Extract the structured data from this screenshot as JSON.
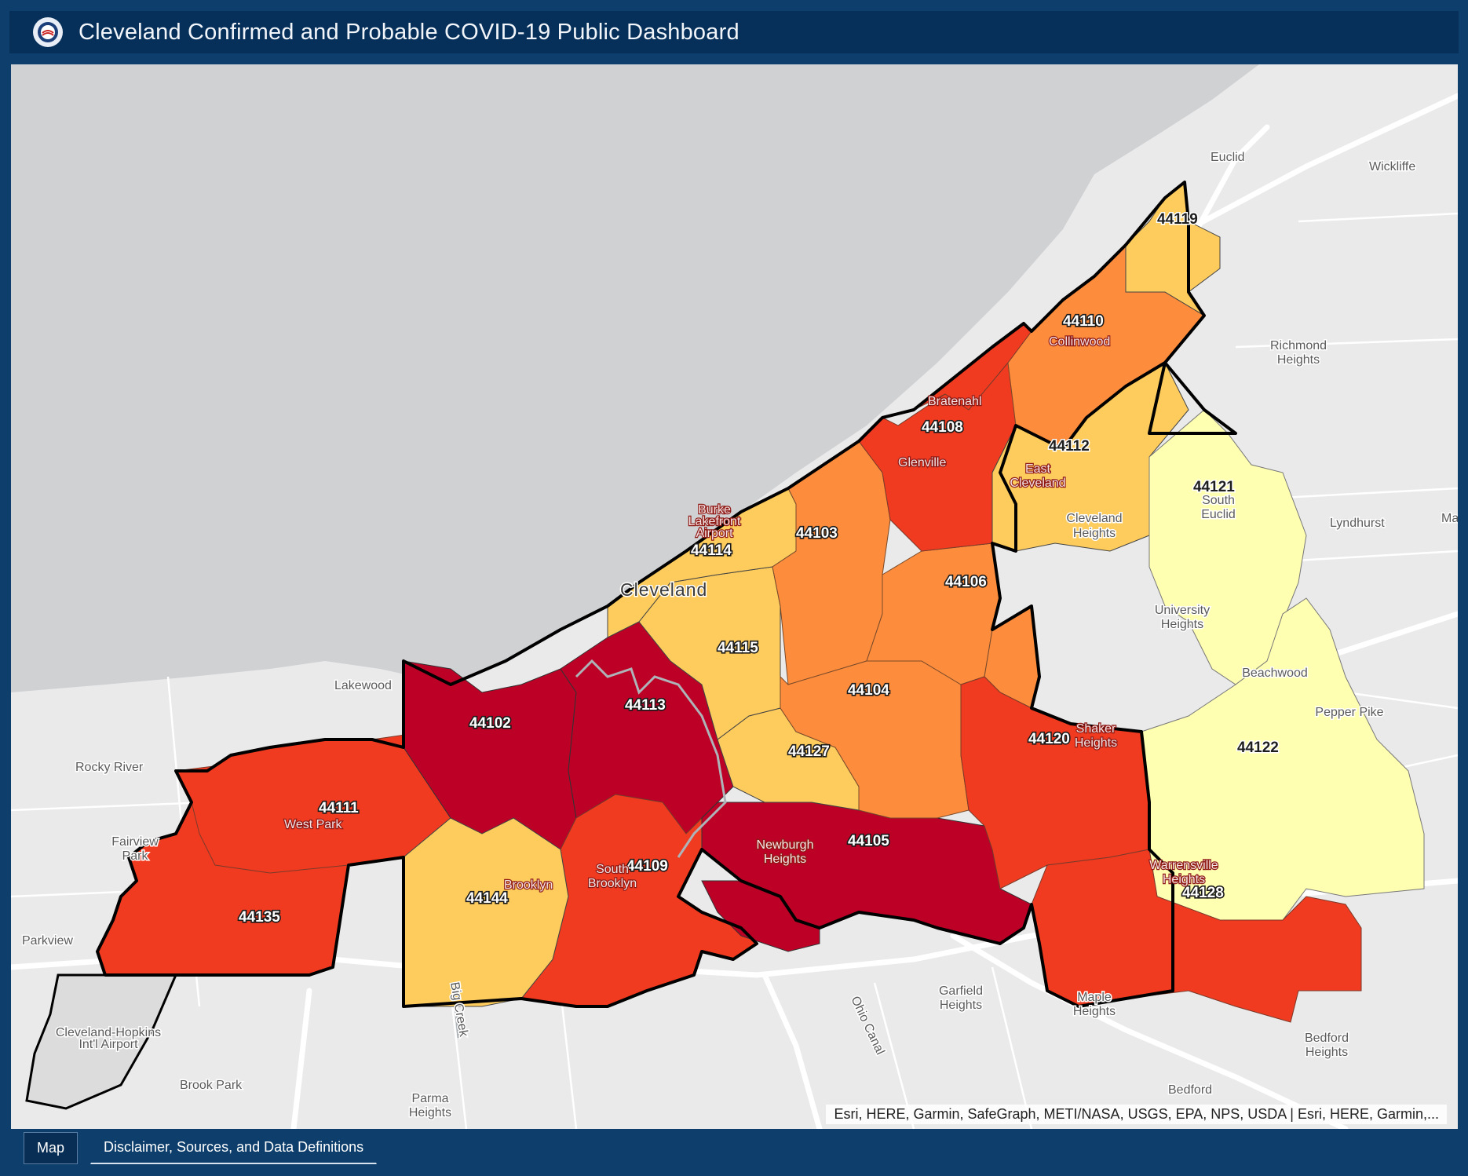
{
  "header": {
    "title": "Cleveland Confirmed and Probable COVID-19 Public Dashboard",
    "logo_icon": "city-seal-icon"
  },
  "map": {
    "colors": {
      "lake": "#cfd1d3",
      "land": "#eaeaeb",
      "class_1": "#ffffb2",
      "class_2": "#fecc5c",
      "class_3": "#fd8d3c",
      "class_4": "#f03b20",
      "class_5": "#bd0026",
      "outline": "#000000"
    },
    "zip_codes": [
      "44119",
      "44110",
      "44108",
      "44112",
      "44121",
      "44103",
      "44114",
      "44106",
      "44115",
      "44104",
      "44102",
      "44113",
      "44127",
      "44120",
      "44122",
      "44111",
      "44105",
      "44109",
      "44144",
      "44128",
      "44135"
    ],
    "place_labels": [
      "Euclid",
      "Wickliffe",
      "Richmond Heights",
      "Lyndhurst",
      "South Euclid",
      "Cleveland Heights",
      "University Heights",
      "Beachwood",
      "Pepper Pike",
      "Lakewood",
      "Rocky River",
      "Fairview Park",
      "Parkview",
      "Brook Park",
      "Parma Heights",
      "Garfield Heights",
      "Maple Heights",
      "Bedford Heights",
      "Bedford",
      "Cleveland-Hopkins Int'l Airport",
      "Big Creek",
      "Ohio Canal",
      "Ma H"
    ],
    "overlay_labels": [
      "Bratenahl",
      "Glenville",
      "Collinwood",
      "East Cleveland",
      "Burke Lakefront Airport",
      "Shaker Heights",
      "Newburgh Heights",
      "South Brooklyn",
      "Brooklyn",
      "West Park",
      "Warrensville Heights"
    ],
    "city_label": "Cleveland",
    "attribution": "Esri, HERE, Garmin, SafeGraph, METI/NASA, USGS, EPA, NPS, USDA | Esri, HERE, Garmin,..."
  },
  "tabs": [
    {
      "label": "Map",
      "active": true
    },
    {
      "label": "Disclaimer, Sources, and Data Definitions",
      "active": false
    }
  ]
}
